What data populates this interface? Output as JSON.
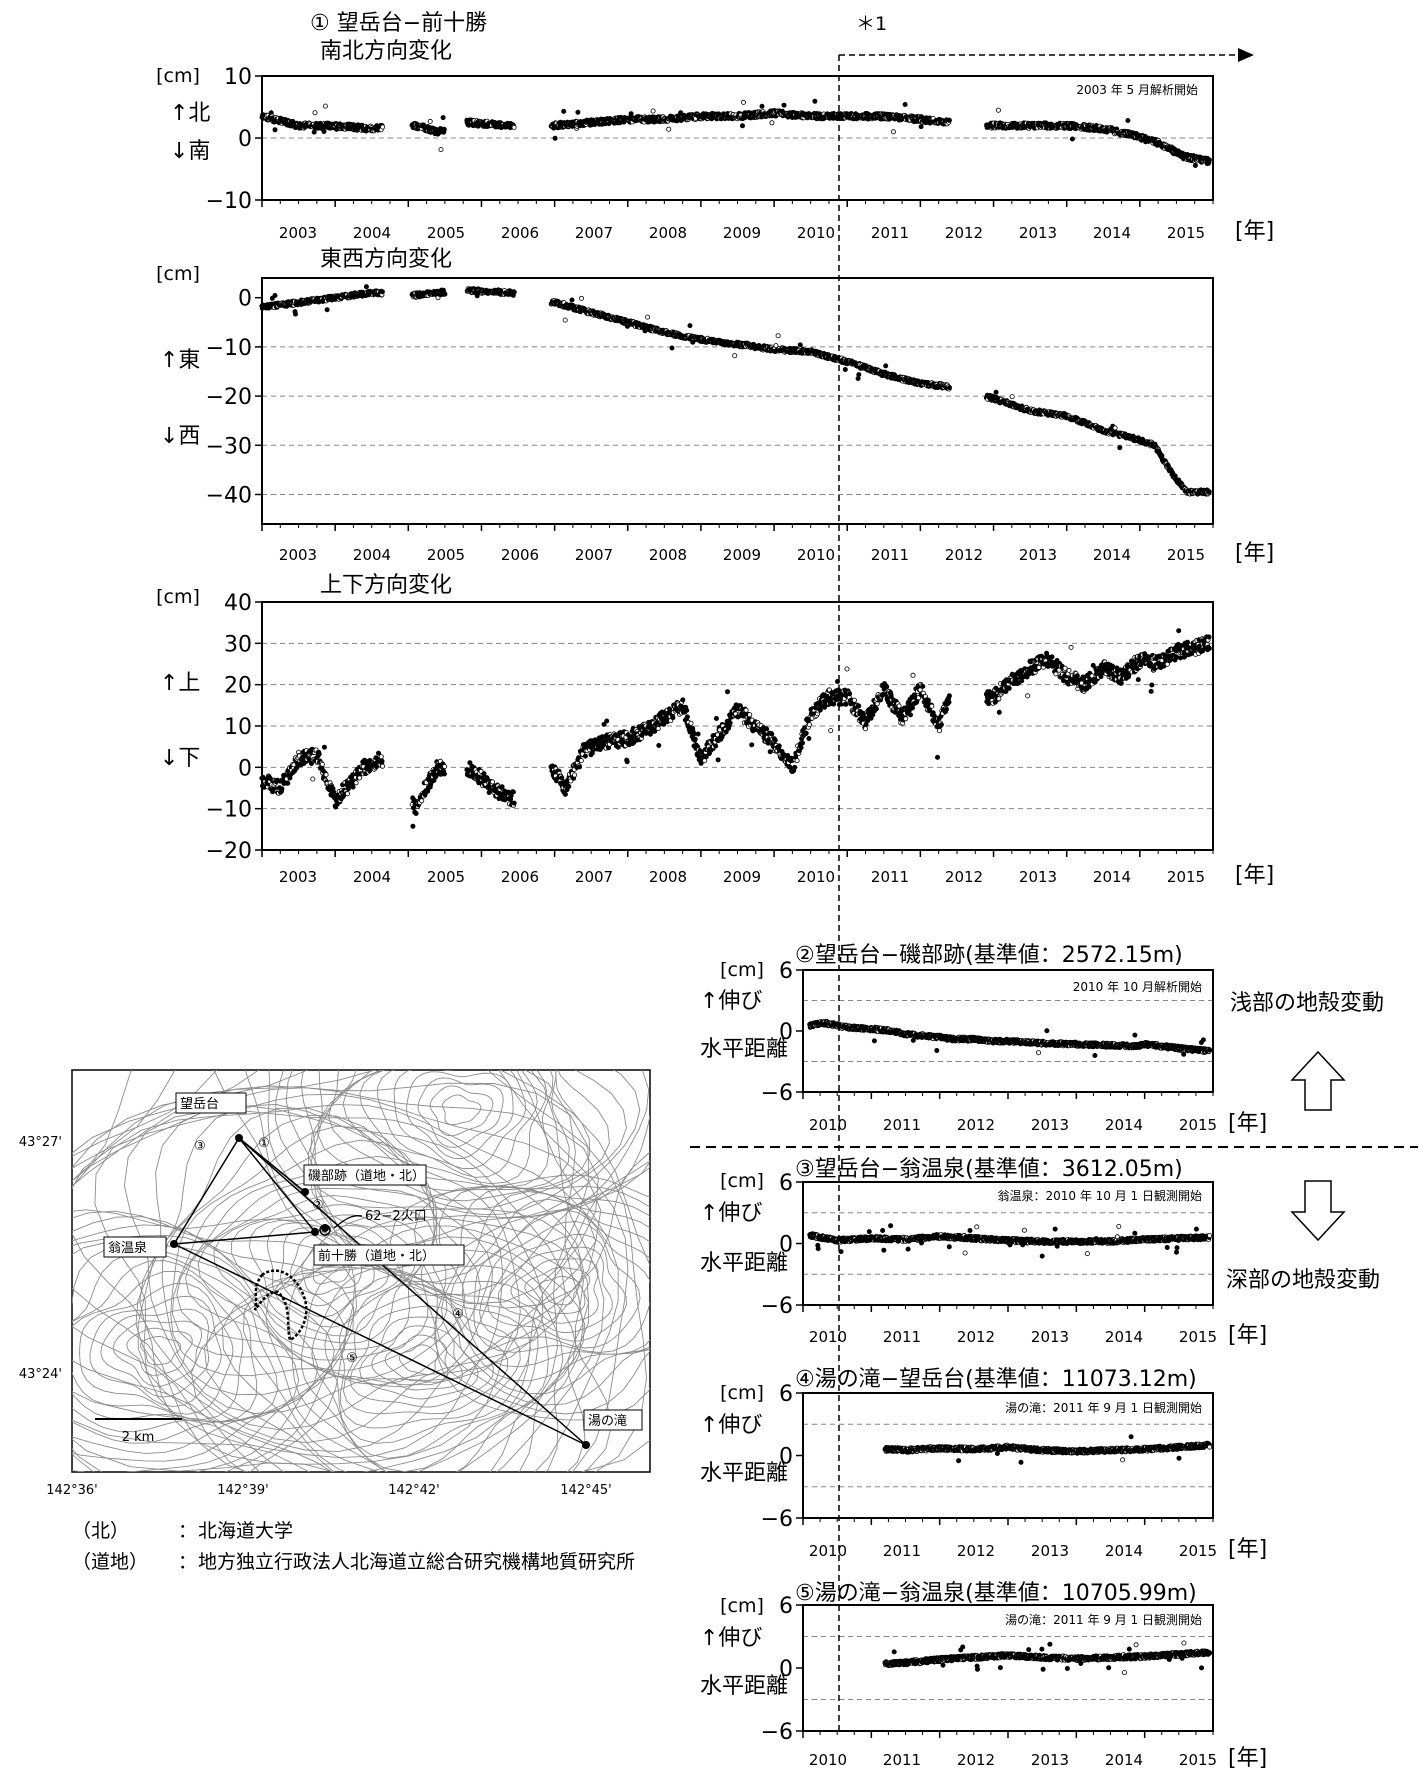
{
  "figure": {
    "star_label": "＊1",
    "year_unit": "[年]",
    "shallow_label": "浅部の地殻変動",
    "deep_label": "深部の地殻変動"
  },
  "legend_notes": [
    {
      "abbr": "（北）",
      "sep": "：",
      "text": "北海道大学"
    },
    {
      "abbr": "（道地）",
      "sep": "：",
      "text": "地方独立行政法人北海道立総合研究機構地質研究所"
    }
  ],
  "map": {
    "stations": [
      "望岳台",
      "磯部跡（道地・北）",
      "62−2火口",
      "前十勝（道地・北）",
      "翁温泉",
      "湯の滝"
    ],
    "baseline_markers": [
      "①",
      "②",
      "③",
      "④",
      "⑤"
    ],
    "lat_labels": [
      "43°27'",
      "43°24'"
    ],
    "lon_labels": [
      "142°36'",
      "142°39'",
      "142°42'",
      "142°45'"
    ],
    "scale_bar": "2 km",
    "colors": {
      "contour": "#8c8c8c",
      "line": "#000000"
    }
  },
  "chart_data": [
    {
      "type": "scatter",
      "title": "① 望岳台−前十勝",
      "subtitle": "南北方向変化",
      "unit": "[cm]",
      "ylabel_pos": "↑北",
      "ylabel_neg": "↓南",
      "annotation": "2003 年 5 月解析開始",
      "x_tick_labels": [
        "2003",
        "2004",
        "2005",
        "2006",
        "2007",
        "2008",
        "2009",
        "2010",
        "2011",
        "2012",
        "2013",
        "2014",
        "2015"
      ],
      "y_tick_labels": [
        "10",
        "0",
        "−10"
      ],
      "ylim": [
        -10,
        10
      ],
      "xlim": [
        2003.0,
        2016.0
      ],
      "gaps": [
        [
          2004.65,
          2005.05
        ],
        [
          2005.5,
          2005.8
        ],
        [
          2006.45,
          2006.95
        ],
        [
          2012.4,
          2012.9
        ]
      ],
      "x": [
        2003.0,
        2003.5,
        2004.0,
        2004.5,
        2005.1,
        2005.4,
        2005.8,
        2006.4,
        2007.0,
        2007.5,
        2008.0,
        2008.5,
        2009.0,
        2009.5,
        2010.0,
        2010.5,
        2011.0,
        2011.5,
        2012.0,
        2012.35,
        2013.0,
        2013.5,
        2014.0,
        2014.5,
        2014.9,
        2015.3,
        2015.6,
        2015.95
      ],
      "y": [
        3.5,
        2.0,
        2.0,
        1.5,
        2.0,
        1.0,
        2.5,
        2.0,
        2.0,
        2.5,
        3.0,
        3.0,
        3.5,
        3.5,
        4.0,
        3.5,
        3.5,
        3.5,
        3.0,
        2.5,
        2.0,
        2.0,
        2.0,
        1.5,
        0.5,
        -1.0,
        -3.0,
        -3.8
      ]
    },
    {
      "type": "scatter",
      "subtitle": "東西方向変化",
      "unit": "[cm]",
      "ylabel_pos": "↑東",
      "ylabel_neg": "↓西",
      "x_tick_labels": [
        "2003",
        "2004",
        "2005",
        "2006",
        "2007",
        "2008",
        "2009",
        "2010",
        "2011",
        "2012",
        "2013",
        "2014",
        "2015"
      ],
      "y_tick_labels": [
        "0",
        "−10",
        "−20",
        "−30",
        "−40"
      ],
      "ylim": [
        -46,
        4
      ],
      "xlim": [
        2003.0,
        2016.0
      ],
      "gaps": [
        [
          2004.65,
          2005.05
        ],
        [
          2005.5,
          2005.8
        ],
        [
          2006.45,
          2006.95
        ],
        [
          2012.4,
          2012.9
        ]
      ],
      "x": [
        2003.0,
        2003.5,
        2004.0,
        2004.5,
        2005.1,
        2005.4,
        2005.8,
        2006.4,
        2007.0,
        2007.5,
        2008.0,
        2008.5,
        2009.0,
        2009.5,
        2010.0,
        2010.5,
        2011.0,
        2011.5,
        2012.0,
        2012.35,
        2013.0,
        2013.5,
        2014.0,
        2014.5,
        2014.9,
        2015.2,
        2015.45,
        2015.65,
        2015.95
      ],
      "y": [
        -2.0,
        -1.0,
        0.0,
        1.0,
        0.5,
        1.0,
        1.5,
        1.0,
        -1.0,
        -3.0,
        -5.0,
        -7.0,
        -8.5,
        -9.5,
        -10.5,
        -11.0,
        -13.0,
        -15.5,
        -17.5,
        -18.0,
        -20.5,
        -23.0,
        -24.0,
        -27.0,
        -28.5,
        -30.0,
        -36.0,
        -39.5,
        -39.5
      ]
    },
    {
      "type": "scatter",
      "subtitle": "上下方向変化",
      "unit": "[cm]",
      "ylabel_pos": "↑上",
      "ylabel_neg": "↓下",
      "x_tick_labels": [
        "2003",
        "2004",
        "2005",
        "2006",
        "2007",
        "2008",
        "2009",
        "2010",
        "2011",
        "2012",
        "2013",
        "2014",
        "2015"
      ],
      "y_tick_labels": [
        "40",
        "30",
        "20",
        "10",
        "0",
        "−10",
        "−20"
      ],
      "ylim": [
        -20,
        40
      ],
      "xlim": [
        2003.0,
        2016.0
      ],
      "gaps": [
        [
          2004.65,
          2005.05
        ],
        [
          2005.5,
          2005.8
        ],
        [
          2006.45,
          2006.95
        ],
        [
          2012.4,
          2012.9
        ]
      ],
      "x": [
        2003.0,
        2003.25,
        2003.5,
        2003.75,
        2004.0,
        2004.15,
        2004.4,
        2004.6,
        2005.1,
        2005.2,
        2005.4,
        2005.8,
        2006.1,
        2006.4,
        2007.0,
        2007.15,
        2007.4,
        2007.7,
        2008.0,
        2008.25,
        2008.5,
        2008.75,
        2009.0,
        2009.25,
        2009.5,
        2009.75,
        2010.0,
        2010.25,
        2010.5,
        2010.75,
        2011.0,
        2011.25,
        2011.5,
        2011.75,
        2012.0,
        2012.25,
        2012.4,
        2013.0,
        2013.25,
        2013.5,
        2013.75,
        2014.0,
        2014.25,
        2014.5,
        2014.75,
        2015.0,
        2015.25,
        2015.5,
        2015.75,
        2015.95
      ],
      "y": [
        -3,
        -5,
        2,
        3,
        -8,
        -5,
        0,
        2,
        -10,
        -6,
        0,
        0,
        -4,
        -8,
        -1,
        -5,
        4,
        6,
        7,
        9,
        12,
        15,
        2,
        8,
        14,
        10,
        6,
        0,
        13,
        17,
        17,
        11,
        19,
        12,
        19,
        10,
        18,
        17,
        21,
        24,
        26,
        22,
        20,
        24,
        22,
        26,
        25,
        28,
        29,
        30
      ]
    },
    {
      "type": "scatter",
      "title": "②望岳台−磯部跡(基準値：2572.15m)",
      "unit": "[cm]",
      "ylabel_pos": "↑伸び",
      "ylabel_neg": "水平距離",
      "annotation": "2010 年 10 月解析開始",
      "x_tick_labels": [
        "2010",
        "2011",
        "2012",
        "2013",
        "2014",
        "2015"
      ],
      "y_tick_labels": [
        "6",
        "0",
        "−6"
      ],
      "ylim": [
        -6,
        6
      ],
      "xlim": [
        2010.0,
        2016.0
      ],
      "x": [
        2010.1,
        2010.3,
        2010.6,
        2011.0,
        2011.3,
        2011.5,
        2011.8,
        2012.0,
        2012.2,
        2012.5,
        2012.8,
        2013.0,
        2013.5,
        2014.0,
        2014.5,
        2014.9,
        2015.0,
        2015.5,
        2015.95
      ],
      "y": [
        0.5,
        0.8,
        0.4,
        0.2,
        0.0,
        -0.3,
        -0.5,
        -0.6,
        -0.8,
        -0.8,
        -1.0,
        -1.0,
        -1.2,
        -1.3,
        -1.4,
        -1.5,
        -1.3,
        -1.7,
        -2.0
      ]
    },
    {
      "type": "scatter",
      "title": "③望岳台−翁温泉(基準値：3612.05m)",
      "unit": "[cm]",
      "ylabel_pos": "↑伸び",
      "ylabel_neg": "水平距離",
      "annotation": "翁温泉：2010 年 10 月 1 日観測開始",
      "x_tick_labels": [
        "2010",
        "2011",
        "2012",
        "2013",
        "2014",
        "2015"
      ],
      "y_tick_labels": [
        "6",
        "0",
        "−6"
      ],
      "ylim": [
        -6,
        6
      ],
      "xlim": [
        2010.0,
        2016.0
      ],
      "x": [
        2010.1,
        2010.5,
        2011.0,
        2011.5,
        2012.0,
        2012.5,
        2013.0,
        2013.5,
        2014.0,
        2014.5,
        2015.0,
        2015.5,
        2015.95
      ],
      "y": [
        0.8,
        0.3,
        0.5,
        0.4,
        0.7,
        0.5,
        0.3,
        0.2,
        0.2,
        0.2,
        0.4,
        0.5,
        0.6
      ]
    },
    {
      "type": "scatter",
      "title": "④湯の滝−望岳台(基準値：11073.12m)",
      "unit": "[cm]",
      "ylabel_pos": "↑伸び",
      "ylabel_neg": "水平距離",
      "annotation": "湯の滝：2011 年 9 月 1 日観測開始",
      "x_tick_labels": [
        "2010",
        "2011",
        "2012",
        "2013",
        "2014",
        "2015"
      ],
      "y_tick_labels": [
        "6",
        "0",
        "−6"
      ],
      "ylim": [
        -6,
        6
      ],
      "xlim": [
        2010.0,
        2016.0
      ],
      "x": [
        2011.2,
        2011.5,
        2012.0,
        2012.5,
        2013.0,
        2013.5,
        2014.0,
        2014.5,
        2015.0,
        2015.5,
        2015.95
      ],
      "y": [
        0.6,
        0.5,
        0.7,
        0.6,
        0.8,
        0.5,
        0.4,
        0.5,
        0.6,
        0.8,
        1.0
      ]
    },
    {
      "type": "scatter",
      "title": "⑤湯の滝−翁温泉(基準値：10705.99m)",
      "unit": "[cm]",
      "ylabel_pos": "↑伸び",
      "ylabel_neg": "水平距離",
      "annotation": "湯の滝：2011 年 9 月 1 日観測開始",
      "x_tick_labels": [
        "2010",
        "2011",
        "2012",
        "2013",
        "2014",
        "2015"
      ],
      "y_tick_labels": [
        "6",
        "0",
        "−6"
      ],
      "ylim": [
        -6,
        6
      ],
      "xlim": [
        2010.0,
        2016.0
      ],
      "x": [
        2011.2,
        2011.5,
        2012.0,
        2012.5,
        2013.0,
        2013.5,
        2014.0,
        2014.5,
        2015.0,
        2015.5,
        2015.95
      ],
      "y": [
        0.4,
        0.5,
        0.8,
        1.0,
        1.2,
        1.0,
        0.9,
        1.0,
        1.1,
        1.3,
        1.5
      ]
    }
  ]
}
